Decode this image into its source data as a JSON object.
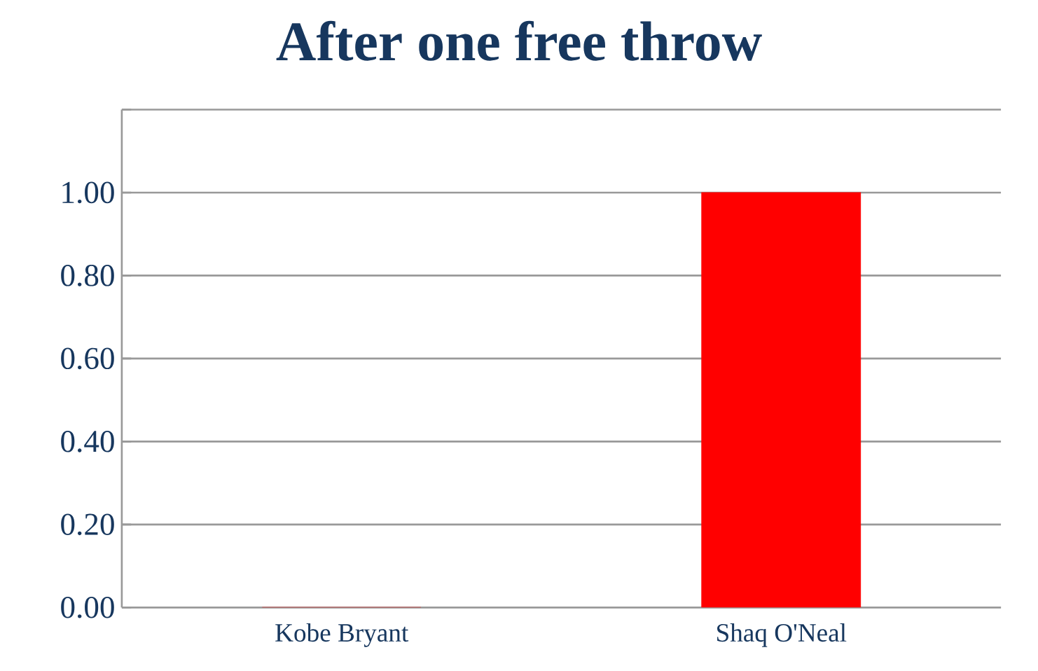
{
  "chart_data": {
    "type": "bar",
    "title": "After one free throw",
    "categories": [
      "Kobe Bryant",
      "Shaq O'Neal"
    ],
    "values": [
      0,
      1.0
    ],
    "color": "#ff0000",
    "ylim": [
      0,
      1.2
    ],
    "yticks": [
      {
        "value": 0,
        "label": "0.00"
      },
      {
        "value": 0.2,
        "label": "0.20"
      },
      {
        "value": 0.4,
        "label": "0.40"
      },
      {
        "value": 0.6,
        "label": "0.60"
      },
      {
        "value": 0.8,
        "label": "0.80"
      },
      {
        "value": 1.0,
        "label": "1.00"
      },
      {
        "value": 1.2,
        "label": null
      }
    ],
    "grid": "y"
  }
}
